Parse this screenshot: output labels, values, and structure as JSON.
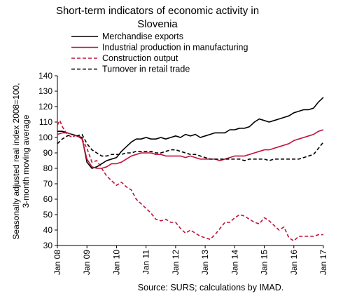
{
  "chart_data": {
    "type": "line",
    "title": [
      "Short-term indicators of economic activity in",
      "Slovenia"
    ],
    "ylabel": [
      "Seasonally adjusted real index 2008=100,",
      "3-month moving average"
    ],
    "xlabel": "",
    "source": "Source: SURS; calculations by IMAD.",
    "ylim": [
      30,
      140
    ],
    "yticks": [
      30,
      40,
      50,
      60,
      70,
      80,
      90,
      100,
      110,
      120,
      130,
      140
    ],
    "xlim": [
      "2008-01",
      "2017-01"
    ],
    "xticks": [
      "Jan 08",
      "Jan 09",
      "Jan 10",
      "Jan 11",
      "Jan 12",
      "Jan 13",
      "Jan 14",
      "Jan 15",
      "Jan 16",
      "Jan 17"
    ],
    "grid": false,
    "legend": "top",
    "series": [
      {
        "name": "Merchandise exports",
        "color": "#000000",
        "dash": "solid",
        "points": [
          [
            "2008-01",
            104
          ],
          [
            "2008-03",
            104
          ],
          [
            "2008-05",
            103
          ],
          [
            "2008-07",
            102
          ],
          [
            "2008-09",
            101
          ],
          [
            "2008-11",
            100
          ],
          [
            "2009-01",
            84
          ],
          [
            "2009-03",
            80
          ],
          [
            "2009-05",
            81
          ],
          [
            "2009-07",
            83
          ],
          [
            "2009-09",
            85
          ],
          [
            "2009-11",
            86
          ],
          [
            "2010-01",
            87
          ],
          [
            "2010-03",
            91
          ],
          [
            "2010-05",
            94
          ],
          [
            "2010-07",
            97
          ],
          [
            "2010-09",
            99
          ],
          [
            "2010-11",
            99
          ],
          [
            "2011-01",
            100
          ],
          [
            "2011-03",
            99
          ],
          [
            "2011-05",
            99
          ],
          [
            "2011-07",
            100
          ],
          [
            "2011-09",
            99
          ],
          [
            "2011-11",
            100
          ],
          [
            "2012-01",
            101
          ],
          [
            "2012-03",
            100
          ],
          [
            "2012-05",
            102
          ],
          [
            "2012-07",
            101
          ],
          [
            "2012-09",
            102
          ],
          [
            "2012-11",
            100
          ],
          [
            "2013-01",
            101
          ],
          [
            "2013-03",
            102
          ],
          [
            "2013-05",
            103
          ],
          [
            "2013-07",
            103
          ],
          [
            "2013-09",
            103
          ],
          [
            "2013-11",
            105
          ],
          [
            "2014-01",
            105
          ],
          [
            "2014-03",
            106
          ],
          [
            "2014-05",
            106
          ],
          [
            "2014-07",
            107
          ],
          [
            "2014-09",
            110
          ],
          [
            "2014-11",
            112
          ],
          [
            "2015-01",
            111
          ],
          [
            "2015-03",
            110
          ],
          [
            "2015-05",
            111
          ],
          [
            "2015-07",
            112
          ],
          [
            "2015-09",
            113
          ],
          [
            "2015-11",
            114
          ],
          [
            "2016-01",
            116
          ],
          [
            "2016-03",
            117
          ],
          [
            "2016-05",
            118
          ],
          [
            "2016-07",
            118
          ],
          [
            "2016-09",
            119
          ],
          [
            "2016-11",
            123
          ],
          [
            "2017-01",
            126
          ]
        ]
      },
      {
        "name": "Industrial production in manufacturing",
        "color": "#c0143c",
        "dash": "solid",
        "points": [
          [
            "2008-01",
            102
          ],
          [
            "2008-03",
            103
          ],
          [
            "2008-05",
            103
          ],
          [
            "2008-07",
            102
          ],
          [
            "2008-09",
            101
          ],
          [
            "2008-11",
            99
          ],
          [
            "2009-01",
            86
          ],
          [
            "2009-03",
            81
          ],
          [
            "2009-05",
            80
          ],
          [
            "2009-07",
            80
          ],
          [
            "2009-09",
            81
          ],
          [
            "2009-11",
            83
          ],
          [
            "2010-01",
            83
          ],
          [
            "2010-03",
            84
          ],
          [
            "2010-05",
            86
          ],
          [
            "2010-07",
            88
          ],
          [
            "2010-09",
            89
          ],
          [
            "2010-11",
            90
          ],
          [
            "2011-01",
            90
          ],
          [
            "2011-03",
            90
          ],
          [
            "2011-05",
            89
          ],
          [
            "2011-07",
            89
          ],
          [
            "2011-09",
            88
          ],
          [
            "2011-11",
            88
          ],
          [
            "2012-01",
            88
          ],
          [
            "2012-03",
            88
          ],
          [
            "2012-05",
            87
          ],
          [
            "2012-07",
            88
          ],
          [
            "2012-09",
            87
          ],
          [
            "2012-11",
            86
          ],
          [
            "2013-01",
            86
          ],
          [
            "2013-03",
            86
          ],
          [
            "2013-05",
            86
          ],
          [
            "2013-07",
            85
          ],
          [
            "2013-09",
            86
          ],
          [
            "2013-11",
            87
          ],
          [
            "2014-01",
            88
          ],
          [
            "2014-03",
            88
          ],
          [
            "2014-05",
            88
          ],
          [
            "2014-07",
            89
          ],
          [
            "2014-09",
            90
          ],
          [
            "2014-11",
            91
          ],
          [
            "2015-01",
            92
          ],
          [
            "2015-03",
            92
          ],
          [
            "2015-05",
            93
          ],
          [
            "2015-07",
            94
          ],
          [
            "2015-09",
            95
          ],
          [
            "2015-11",
            96
          ],
          [
            "2016-01",
            98
          ],
          [
            "2016-03",
            99
          ],
          [
            "2016-05",
            100
          ],
          [
            "2016-07",
            101
          ],
          [
            "2016-09",
            102
          ],
          [
            "2016-11",
            104
          ],
          [
            "2017-01",
            105
          ]
        ]
      },
      {
        "name": "Construction output",
        "color": "#c0143c",
        "dash": "dashed",
        "points": [
          [
            "2008-01",
            108
          ],
          [
            "2008-02",
            111
          ],
          [
            "2008-03",
            107
          ],
          [
            "2008-05",
            102
          ],
          [
            "2008-07",
            100
          ],
          [
            "2008-09",
            102
          ],
          [
            "2008-11",
            99
          ],
          [
            "2009-01",
            93
          ],
          [
            "2009-03",
            84
          ],
          [
            "2009-05",
            85
          ],
          [
            "2009-07",
            80
          ],
          [
            "2009-09",
            75
          ],
          [
            "2009-11",
            72
          ],
          [
            "2010-01",
            69
          ],
          [
            "2010-03",
            71
          ],
          [
            "2010-05",
            68
          ],
          [
            "2010-07",
            66
          ],
          [
            "2010-09",
            60
          ],
          [
            "2010-11",
            57
          ],
          [
            "2011-01",
            54
          ],
          [
            "2011-03",
            51
          ],
          [
            "2011-05",
            47
          ],
          [
            "2011-07",
            46
          ],
          [
            "2011-09",
            47
          ],
          [
            "2011-11",
            45
          ],
          [
            "2012-01",
            45
          ],
          [
            "2012-03",
            41
          ],
          [
            "2012-05",
            38
          ],
          [
            "2012-07",
            40
          ],
          [
            "2012-09",
            38
          ],
          [
            "2012-11",
            36
          ],
          [
            "2013-01",
            35
          ],
          [
            "2013-03",
            34
          ],
          [
            "2013-05",
            37
          ],
          [
            "2013-07",
            41
          ],
          [
            "2013-09",
            45
          ],
          [
            "2013-11",
            45
          ],
          [
            "2014-01",
            48
          ],
          [
            "2014-03",
            50
          ],
          [
            "2014-05",
            49
          ],
          [
            "2014-07",
            47
          ],
          [
            "2014-09",
            45
          ],
          [
            "2014-11",
            44
          ],
          [
            "2015-01",
            48
          ],
          [
            "2015-03",
            46
          ],
          [
            "2015-05",
            43
          ],
          [
            "2015-07",
            40
          ],
          [
            "2015-09",
            42
          ],
          [
            "2015-11",
            35
          ],
          [
            "2016-01",
            33
          ],
          [
            "2016-03",
            36
          ],
          [
            "2016-05",
            36
          ],
          [
            "2016-07",
            36
          ],
          [
            "2016-09",
            36
          ],
          [
            "2016-11",
            37
          ],
          [
            "2017-01",
            37
          ]
        ]
      },
      {
        "name": "Turnover in retail trade",
        "color": "#000000",
        "dash": "dashed",
        "points": [
          [
            "2008-01",
            96
          ],
          [
            "2008-03",
            99
          ],
          [
            "2008-05",
            101
          ],
          [
            "2008-07",
            102
          ],
          [
            "2008-09",
            101
          ],
          [
            "2008-11",
            102
          ],
          [
            "2009-01",
            96
          ],
          [
            "2009-03",
            92
          ],
          [
            "2009-05",
            90
          ],
          [
            "2009-07",
            88
          ],
          [
            "2009-09",
            88
          ],
          [
            "2009-11",
            89
          ],
          [
            "2010-01",
            89
          ],
          [
            "2010-03",
            89
          ],
          [
            "2010-05",
            90
          ],
          [
            "2010-07",
            90
          ],
          [
            "2010-09",
            91
          ],
          [
            "2010-11",
            91
          ],
          [
            "2011-01",
            91
          ],
          [
            "2011-03",
            91
          ],
          [
            "2011-05",
            90
          ],
          [
            "2011-07",
            90
          ],
          [
            "2011-09",
            91
          ],
          [
            "2011-11",
            92
          ],
          [
            "2012-01",
            92
          ],
          [
            "2012-03",
            91
          ],
          [
            "2012-05",
            90
          ],
          [
            "2012-07",
            89
          ],
          [
            "2012-09",
            89
          ],
          [
            "2012-11",
            88
          ],
          [
            "2013-01",
            87
          ],
          [
            "2013-03",
            86
          ],
          [
            "2013-05",
            86
          ],
          [
            "2013-07",
            86
          ],
          [
            "2013-09",
            86
          ],
          [
            "2013-11",
            86
          ],
          [
            "2014-01",
            86
          ],
          [
            "2014-03",
            86
          ],
          [
            "2014-05",
            85
          ],
          [
            "2014-07",
            86
          ],
          [
            "2014-09",
            86
          ],
          [
            "2014-11",
            86
          ],
          [
            "2015-01",
            86
          ],
          [
            "2015-03",
            85
          ],
          [
            "2015-05",
            86
          ],
          [
            "2015-07",
            86
          ],
          [
            "2015-09",
            86
          ],
          [
            "2015-11",
            86
          ],
          [
            "2016-01",
            86
          ],
          [
            "2016-03",
            86
          ],
          [
            "2016-05",
            87
          ],
          [
            "2016-07",
            88
          ],
          [
            "2016-09",
            89
          ],
          [
            "2016-11",
            93
          ],
          [
            "2017-01",
            97
          ]
        ]
      }
    ]
  }
}
